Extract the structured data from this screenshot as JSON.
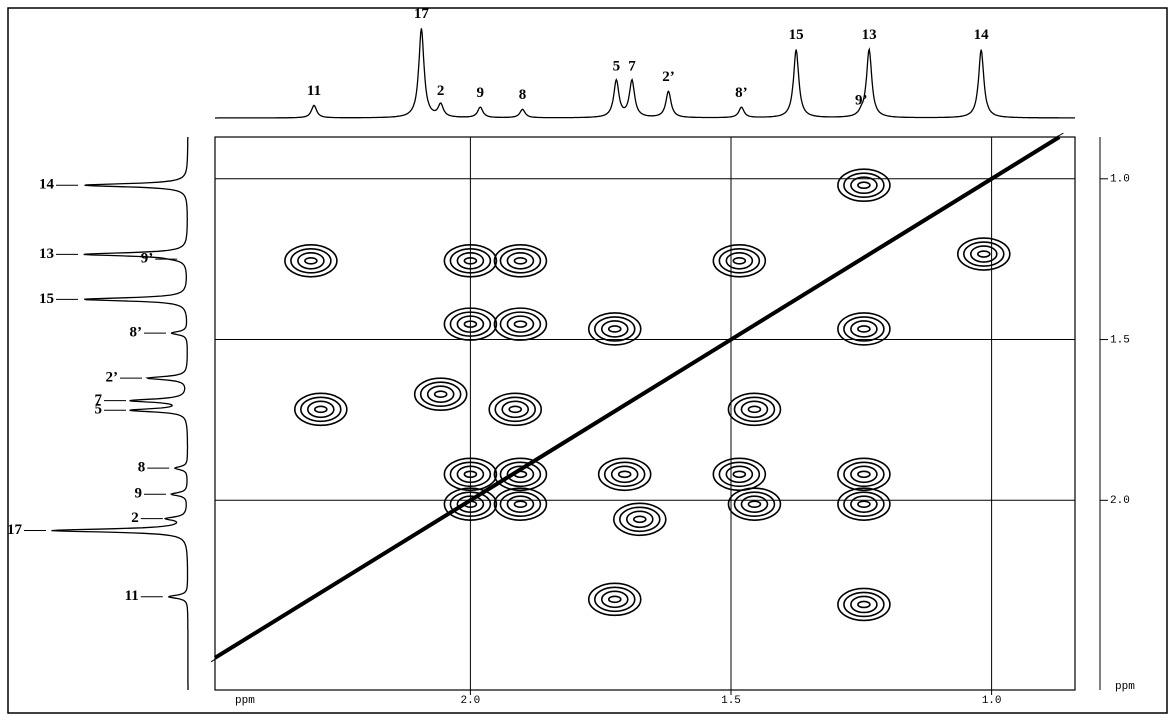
{
  "chart_data": {
    "type": "cosy",
    "x_label": "ppm",
    "y_label": "ppm",
    "xlim": [
      2.49,
      0.84
    ],
    "ylim": [
      0.87,
      2.59
    ],
    "xticks": [
      {
        "value": 2.0,
        "label": "2.0"
      },
      {
        "value": 1.5,
        "label": "1.5"
      },
      {
        "value": 1.0,
        "label": "1.0"
      }
    ],
    "yticks": [
      {
        "value": 1.0,
        "label": "1.0"
      },
      {
        "value": 1.5,
        "label": "1.5"
      },
      {
        "value": 2.0,
        "label": "2.0"
      }
    ],
    "grid": true,
    "color": "#000000",
    "assignments": [
      "11",
      "17",
      "2",
      "9",
      "8",
      "5",
      "7",
      "2’",
      "8’",
      "15",
      "13",
      "14",
      "9’"
    ],
    "assignment_ppm": [
      2.3,
      2.094,
      2.057,
      1.981,
      1.9,
      1.72,
      1.69,
      1.62,
      1.48,
      1.375,
      1.235,
      1.02,
      1.25
    ],
    "assignment_intensity": [
      12,
      85,
      12,
      10,
      8,
      35,
      35,
      25,
      10,
      65,
      65,
      65,
      3
    ],
    "cross_peaks_x": [
      2.306,
      2.0,
      1.904,
      1.484,
      1.245,
      1.015,
      2.0,
      1.904,
      1.723,
      1.245,
      2.287,
      2.057,
      1.914,
      1.455,
      2.0,
      1.904,
      1.704,
      1.484,
      1.245,
      2.0,
      1.904,
      1.675,
      1.455,
      1.245,
      1.723,
      1.245
    ],
    "cross_peaks_y": [
      1.255,
      1.255,
      1.255,
      1.255,
      1.02,
      1.234,
      1.452,
      1.452,
      1.467,
      1.467,
      1.717,
      1.67,
      1.717,
      1.717,
      1.919,
      1.919,
      1.919,
      1.919,
      1.919,
      2.012,
      2.012,
      2.059,
      2.012,
      2.012,
      2.308,
      2.324
    ]
  }
}
